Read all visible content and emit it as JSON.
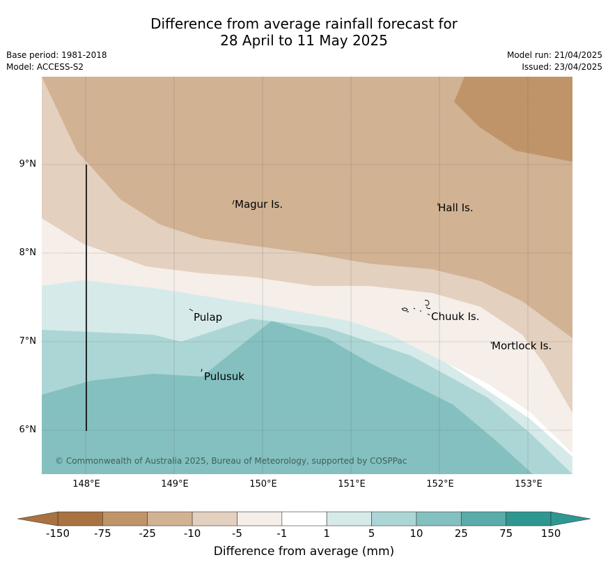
{
  "header": {
    "title_line1": "Difference from average rainfall forecast for",
    "title_line2": "28 April to 11 May 2025",
    "base_period": "Base period: 1981-2018",
    "model": "Model: ACCESS-S2",
    "model_run": "Model run: 21/04/2025",
    "issued": "Issued: 23/04/2025"
  },
  "map": {
    "latitude_labels": [
      "9°N",
      "8°N",
      "7°N",
      "6°N"
    ],
    "longitude_labels": [
      "148°E",
      "149°E",
      "150°E",
      "151°E",
      "152°E",
      "153°E"
    ],
    "places": [
      "Magur Is.",
      "Hall Is.",
      "Pulap",
      "Chuuk Is.",
      "Mortlock Is.",
      "Pulusuk"
    ],
    "copyright": "© Commonwealth of Australia 2025, Bureau of Meteorology, supported by COSPPac"
  },
  "legend": {
    "title": "Difference from average (mm)",
    "ticks": [
      "-150",
      "-75",
      "-25",
      "-10",
      "-5",
      "-1",
      "1",
      "5",
      "10",
      "25",
      "75",
      "150"
    ],
    "colors": [
      "#a97240",
      "#c09469",
      "#d1b293",
      "#e3d0bf",
      "#f5eee9",
      "#ffffff",
      "#d6eaea",
      "#acd6d5",
      "#84c0bf",
      "#5aacaa",
      "#2f9792"
    ]
  }
}
